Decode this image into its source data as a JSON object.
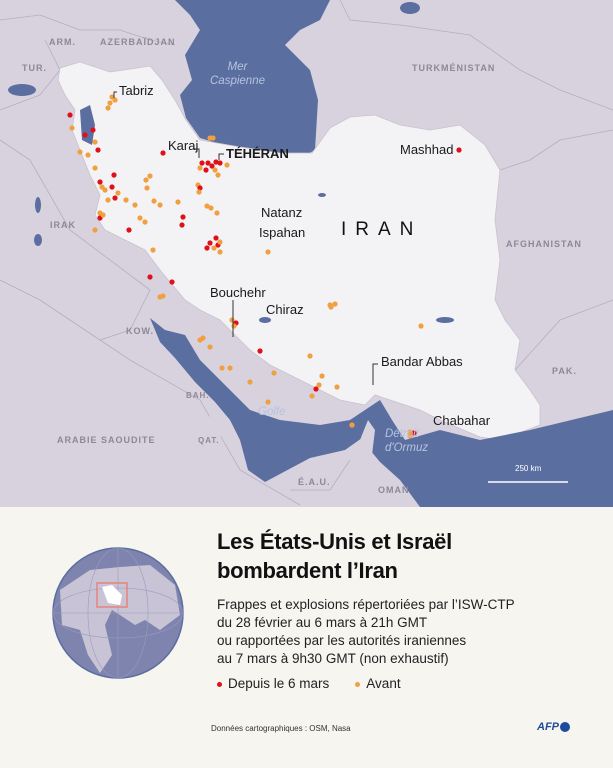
{
  "map": {
    "colors": {
      "land": "#d8d2de",
      "iran": "#f3f2f5",
      "water": "#5a6ea0",
      "recent": "#e0101a",
      "before": "#f0a040"
    },
    "cities": {
      "tabriz": "Tabriz",
      "karaj": "Karaj",
      "teheran": "TÉHÉRAN",
      "mashhad": "Mashhad",
      "natanz": "Natanz",
      "ispahan": "Ispahan",
      "bouchehr": "Bouchehr",
      "chiraz": "Chiraz",
      "bandar_abbas": "Bandar Abbas",
      "chabahar": "Chabahar"
    },
    "country_main": "IRAN",
    "countries": {
      "arm": "ARM.",
      "aze": "AZERBAÏDJAN",
      "tur": "TUR.",
      "tkm": "TURKMÉNISTAN",
      "irak": "IRAK",
      "afg": "AFGHANISTAN",
      "kow": "KOW.",
      "pak": "PAK.",
      "bah": "BAH.",
      "qat": "QAT.",
      "ksa": "ARABIE SAOUDITE",
      "eau": "É.A.U.",
      "oman": "OMAN"
    },
    "seas": {
      "caspian_1": "Mer",
      "caspian_2": "Caspienne",
      "golfe": "Golfe",
      "ormuz_1": "Détroit",
      "ormuz_2": "d'Ormuz"
    },
    "scale": "250 km"
  },
  "title": {
    "line1": "Les États-Unis et Israël",
    "line2": "bombardent l’Iran"
  },
  "subtitle": [
    "Frappes et explosions répertoriées par l’ISW-CTP",
    "du 28 février au 6 mars à 21h GMT",
    "ou rapportées par les autorités iraniennes",
    "au 7 mars à 9h30 GMT (non exhaustif)"
  ],
  "legend": {
    "recent": "Depuis le 6 mars",
    "before": "Avant"
  },
  "credits": "Données cartographiques : OSM, Nasa",
  "logo": "AFP"
}
